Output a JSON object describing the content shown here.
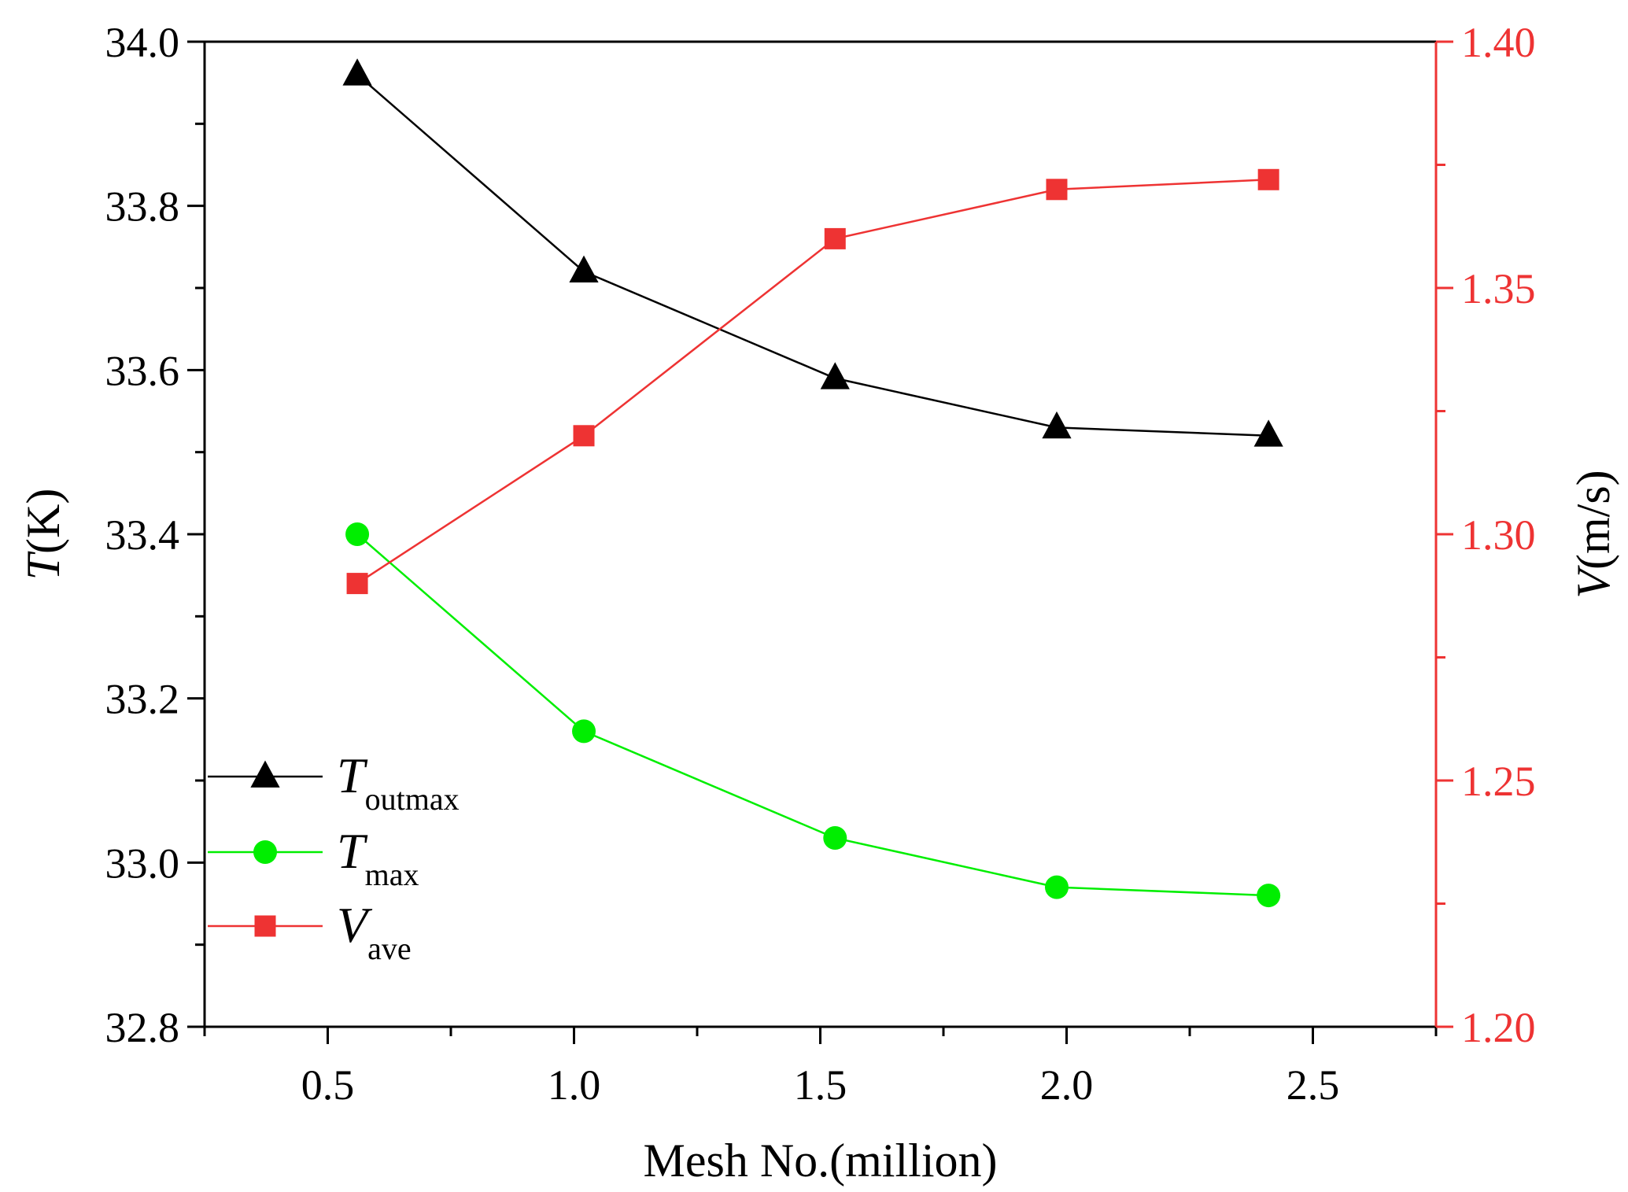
{
  "chart_data": {
    "type": "line",
    "x_axis": {
      "label": "Mesh No.(million)",
      "range": [
        0.25,
        2.75
      ],
      "major_ticks": [
        0.5,
        1.0,
        1.5,
        2.0,
        2.5
      ],
      "tick_labels": [
        "0.5",
        "1.0",
        "1.5",
        "2.0",
        "2.5"
      ],
      "minor_ticks": [
        0.25,
        0.75,
        1.25,
        1.75,
        2.25,
        2.75
      ]
    },
    "y_left": {
      "label_symbol": "T",
      "label_unit": "(K)",
      "range": [
        32.8,
        34.0
      ],
      "major_ticks": [
        32.8,
        33.0,
        33.2,
        33.4,
        33.6,
        33.8,
        34.0
      ],
      "tick_labels": [
        "32.8",
        "33.0",
        "33.2",
        "33.4",
        "33.6",
        "33.8",
        "34.0"
      ],
      "minor_ticks": [
        32.9,
        33.1,
        33.3,
        33.5,
        33.7,
        33.9
      ],
      "color": "#000000"
    },
    "y_right": {
      "label_symbol": "V",
      "label_unit": "(m/s)",
      "range": [
        1.2,
        1.4
      ],
      "major_ticks": [
        1.2,
        1.25,
        1.3,
        1.35,
        1.4
      ],
      "tick_labels": [
        "1.20",
        "1.25",
        "1.30",
        "1.35",
        "1.40"
      ],
      "minor_ticks": [
        1.225,
        1.275,
        1.325,
        1.375
      ],
      "color": "#ee3333"
    },
    "x": [
      0.56,
      1.02,
      1.53,
      1.98,
      2.41
    ],
    "series": [
      {
        "name_main": "T",
        "name_sub": "outmax",
        "axis": "left",
        "marker": "triangle",
        "color": "#000000",
        "values": [
          33.96,
          33.72,
          33.59,
          33.53,
          33.52
        ]
      },
      {
        "name_main": "T",
        "name_sub": "max",
        "axis": "left",
        "marker": "circle",
        "color": "#00ee00",
        "values": [
          33.4,
          33.16,
          33.03,
          32.97,
          32.96
        ]
      },
      {
        "name_main": "V",
        "name_sub": "ave",
        "axis": "right",
        "marker": "square",
        "color": "#ee3333",
        "values": [
          1.29,
          1.32,
          1.36,
          1.37,
          1.372
        ]
      }
    ],
    "legend_position": "lower-left",
    "grid": false
  }
}
